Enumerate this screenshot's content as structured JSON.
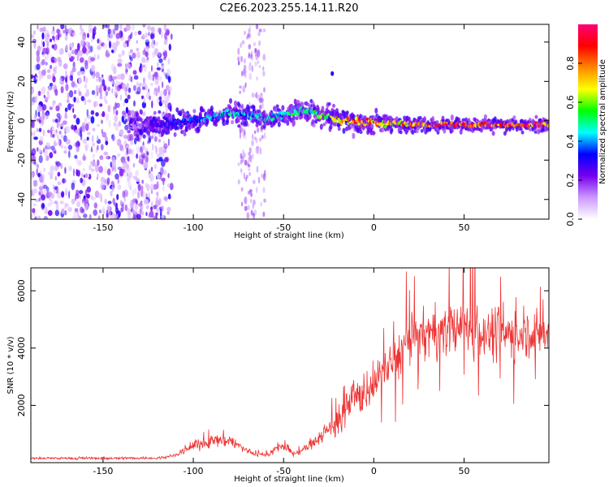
{
  "title": "C2E6.2023.255.14.11.R20",
  "chart_data": [
    {
      "type": "heatmap",
      "name": "spectrogram",
      "xlabel": "Height of straight line (km)",
      "ylabel": "Frequency (Hz)",
      "xlim": [
        -190,
        97
      ],
      "ylim": [
        -50,
        49
      ],
      "xticks": [
        -150,
        -100,
        -50,
        0,
        50
      ],
      "yticks": [
        40,
        20,
        0,
        -20,
        -40
      ],
      "colorbar": {
        "label": "Normalized spectral amplitude",
        "range": [
          0,
          1
        ],
        "ticks": [
          0.0,
          0.2,
          0.4,
          0.6,
          0.8
        ],
        "colors": [
          "#ffffff",
          "#cc99ff",
          "#7700ee",
          "#0000ff",
          "#00ffff",
          "#00ff00",
          "#ffff00",
          "#ff8800",
          "#ff0000",
          "#ff0077"
        ]
      },
      "ridge": {
        "x": [
          -130,
          -120,
          -110,
          -100,
          -90,
          -80,
          -70,
          -60,
          -50,
          -40,
          -30,
          -20,
          -10,
          0,
          10,
          20,
          30,
          40,
          50,
          60,
          70,
          80,
          97
        ],
        "freq": [
          -3,
          -2,
          -1,
          0,
          2,
          4,
          3,
          1,
          3,
          5,
          3,
          1,
          -1,
          -1,
          -1,
          -2,
          -2,
          -2,
          -2,
          -2,
          -2,
          -2,
          -2
        ],
        "amplitude": [
          0.15,
          0.3,
          0.35,
          0.4,
          0.45,
          0.5,
          0.45,
          0.5,
          0.55,
          0.55,
          0.6,
          0.8,
          0.9,
          0.85,
          0.8,
          0.85,
          0.9,
          0.95,
          0.95,
          0.95,
          0.95,
          0.95,
          0.95
        ]
      },
      "noise_region_x": [
        -190,
        -112
      ]
    },
    {
      "type": "line",
      "name": "snr",
      "xlabel": "Height of straight line (km)",
      "ylabel": "SNR (10 * v/v)",
      "xlim": [
        -190,
        97
      ],
      "ylim": [
        0,
        6800
      ],
      "xticks": [
        -150,
        -100,
        -50,
        0,
        50
      ],
      "yticks": [
        2000,
        4000,
        6000
      ],
      "color": "#ee3333",
      "envelope": {
        "x": [
          -190,
          -120,
          -110,
          -100,
          -90,
          -80,
          -70,
          -60,
          -55,
          -50,
          -45,
          -40,
          -30,
          -20,
          -10,
          0,
          10,
          20,
          30,
          40,
          50,
          60,
          70,
          80,
          90,
          97
        ],
        "y": [
          150,
          160,
          250,
          600,
          750,
          800,
          400,
          250,
          450,
          600,
          300,
          400,
          900,
          1500,
          2200,
          2800,
          3500,
          4300,
          4500,
          4600,
          4700,
          4600,
          4500,
          4500,
          4500,
          4500
        ]
      }
    }
  ]
}
